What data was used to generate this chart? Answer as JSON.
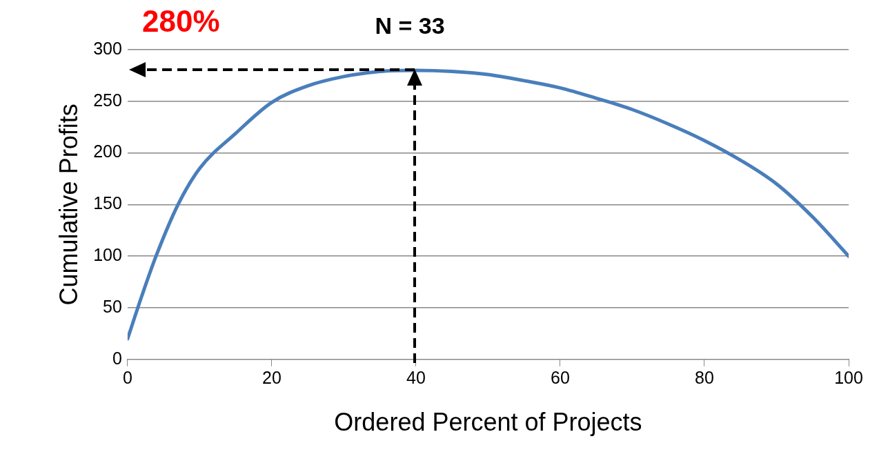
{
  "chart_data": {
    "type": "line",
    "xlabel": "Ordered Percent of Projects",
    "ylabel": "Cumulative Profits",
    "x": [
      0,
      2,
      4,
      7,
      10,
      15,
      20,
      25,
      30,
      35,
      40,
      45,
      50,
      55,
      60,
      65,
      70,
      75,
      80,
      85,
      90,
      95,
      100
    ],
    "series": [
      {
        "color": "#4a7ebb",
        "values": [
          20,
          62,
          101,
          150,
          185,
          219,
          249,
          265,
          274,
          279,
          280,
          279,
          276,
          270,
          263,
          253,
          242,
          228,
          212,
          193,
          170,
          138,
          100
        ]
      }
    ],
    "xlim": [
      0,
      100
    ],
    "xticks": [
      0,
      20,
      40,
      60,
      80,
      100
    ],
    "ylim": [
      0,
      300
    ],
    "yticks": [
      0,
      50,
      100,
      150,
      200,
      250,
      300
    ],
    "grid": "y",
    "legend": false,
    "marker": "none",
    "line_style": "solid",
    "annotations": [
      "280%",
      "N = 33"
    ]
  }
}
